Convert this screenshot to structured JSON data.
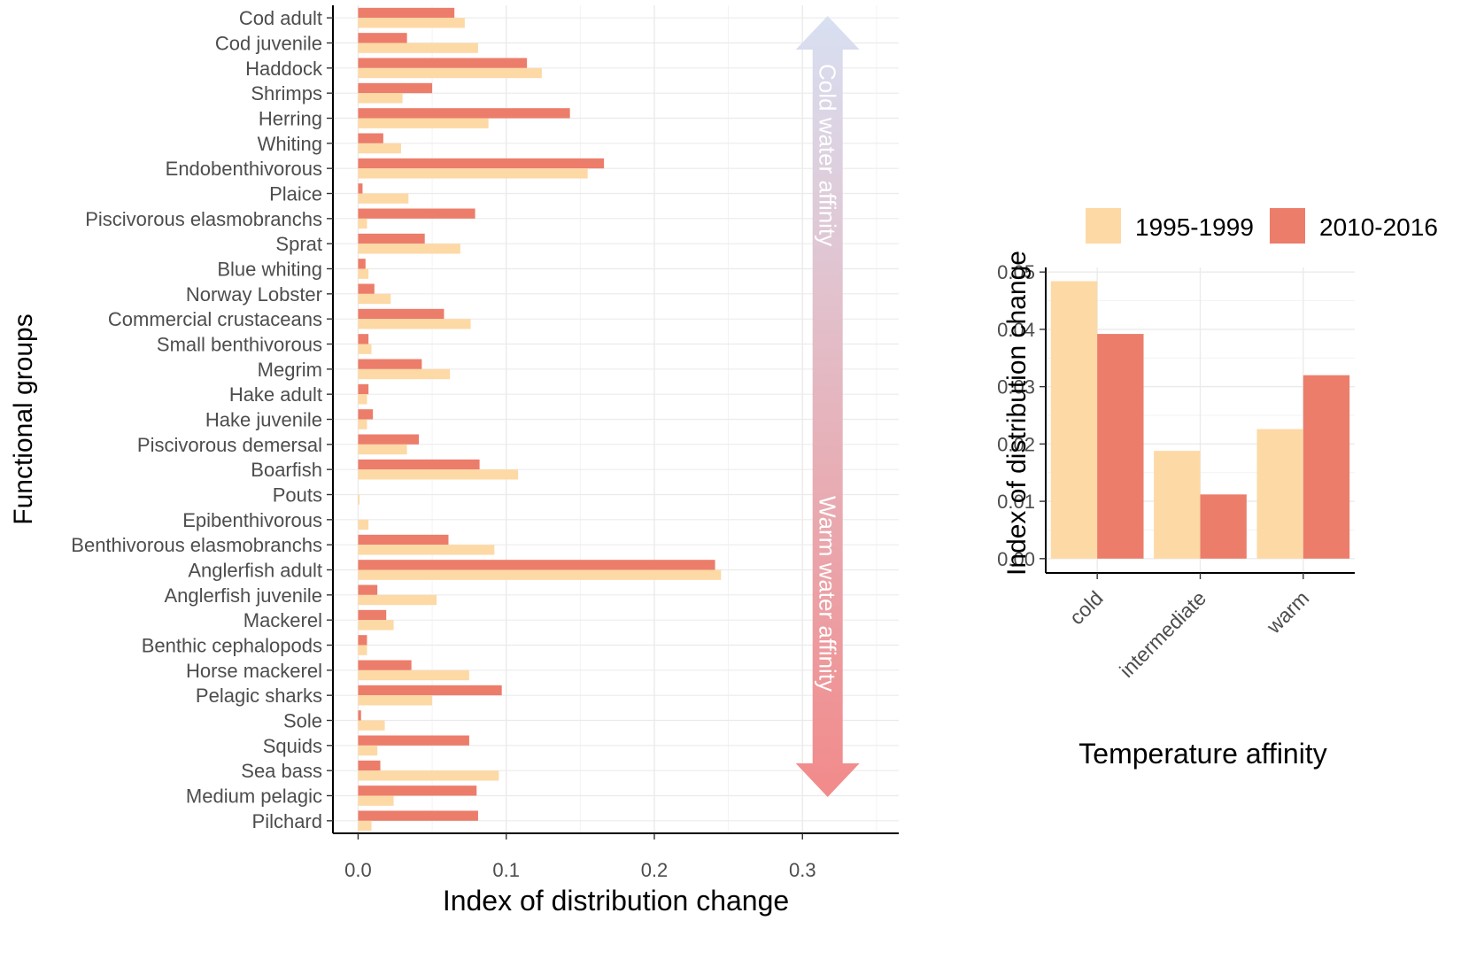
{
  "colors": {
    "period1": "#fdd9a6",
    "period2": "#ec7d6b",
    "grid": "#ebebeb",
    "axis": "#000000",
    "tick_text": "#4d4d4d",
    "title_text": "#000000",
    "arrow_top": "#d8e0f2",
    "arrow_bottom": "#f28a8a"
  },
  "chart_data": [
    {
      "type": "bar",
      "orientation": "horizontal",
      "xlabel": "Index of distribution change",
      "ylabel": "Functional groups",
      "xlim": [
        -0.017,
        0.365
      ],
      "xticks": [
        0.0,
        0.1,
        0.2,
        0.3
      ],
      "xtick_labels": [
        "0.0",
        "0.1",
        "0.2",
        "0.3"
      ],
      "annotation_top": "Cold water affinity",
      "annotation_bottom": "Warm water affinity",
      "annotation_x": 0.317,
      "categories": [
        "Cod adult",
        "Cod juvenile",
        "Haddock",
        "Shrimps",
        "Herring",
        "Whiting",
        "Endobenthivorous",
        "Plaice",
        "Piscivorous elasmobranchs",
        "Sprat",
        "Blue whiting",
        "Norway Lobster",
        "Commercial crustaceans",
        "Small benthivorous",
        "Megrim",
        "Hake adult",
        "Hake juvenile",
        "Piscivorous demersal",
        "Boarfish",
        "Pouts",
        "Epibenthivorous",
        "Benthivorous elasmobranchs",
        "Anglerfish adult",
        "Anglerfish juvenile",
        "Mackerel",
        "Benthic cephalopods",
        "Horse mackerel",
        "Pelagic sharks",
        "Sole",
        "Squids",
        "Sea bass",
        "Medium pelagic",
        "Pilchard"
      ],
      "series": [
        {
          "name": "1995-1999",
          "values": [
            0.072,
            0.081,
            0.124,
            0.03,
            0.088,
            0.029,
            0.155,
            0.034,
            0.006,
            0.069,
            0.007,
            0.022,
            0.076,
            0.009,
            0.062,
            0.006,
            0.006,
            0.033,
            0.108,
            0.001,
            0.007,
            0.092,
            0.245,
            0.053,
            0.024,
            0.006,
            0.075,
            0.05,
            0.018,
            0.013,
            0.095,
            0.024,
            0.009
          ]
        },
        {
          "name": "2010-2016",
          "values": [
            0.065,
            0.033,
            0.114,
            0.05,
            0.143,
            0.017,
            0.166,
            0.003,
            0.079,
            0.045,
            0.005,
            0.011,
            0.058,
            0.007,
            0.043,
            0.007,
            0.01,
            0.041,
            0.082,
            0.0,
            0.0,
            0.061,
            0.241,
            0.013,
            0.019,
            0.006,
            0.036,
            0.097,
            0.002,
            0.075,
            0.015,
            0.08,
            0.081
          ]
        }
      ]
    },
    {
      "type": "bar",
      "orientation": "vertical",
      "xlabel": "Temperature affinity",
      "ylabel": "Index of distribution change",
      "ylim": [
        -0.0025,
        0.0508
      ],
      "yticks": [
        0.0,
        0.01,
        0.02,
        0.03,
        0.04,
        0.05
      ],
      "ytick_labels": [
        "0.00",
        "0.01",
        "0.02",
        "0.03",
        "0.04",
        "0.05"
      ],
      "categories": [
        "cold",
        "intermediate",
        "warm"
      ],
      "legend": [
        "1995-1999",
        "2010-2016"
      ],
      "legend_position": "top",
      "series": [
        {
          "name": "1995-1999",
          "values": [
            0.0484,
            0.0188,
            0.0226
          ]
        },
        {
          "name": "2010-2016",
          "values": [
            0.0392,
            0.0112,
            0.032
          ]
        }
      ]
    }
  ]
}
